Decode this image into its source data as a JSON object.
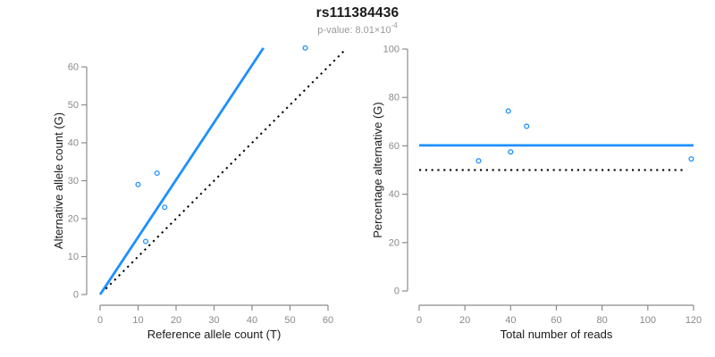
{
  "header": {
    "title": "rs111384436",
    "pvalue_text": "p-value: 8.01×10",
    "pvalue_exponent": "-4"
  },
  "colors": {
    "accent_blue": "#1e90ff",
    "dotted_black": "#000000",
    "axis_gray": "#8c8c8c",
    "tick_label_gray": "#8a8a8a",
    "axis_title_black": "#1a1a1a"
  },
  "chart_data": [
    {
      "type": "scatter",
      "panel": "left",
      "xlabel": "Reference allele count (T)",
      "ylabel": "Alternative allele count (G)",
      "xlim": [
        0,
        60
      ],
      "ylim": [
        0,
        60
      ],
      "xticks": [
        0,
        10,
        20,
        30,
        40,
        50,
        60
      ],
      "yticks": [
        0,
        10,
        20,
        30,
        40,
        50,
        60
      ],
      "grid": false,
      "points": [
        [
          10,
          29
        ],
        [
          12,
          14
        ],
        [
          15,
          32
        ],
        [
          17,
          23
        ],
        [
          54,
          65
        ]
      ],
      "lines": [
        {
          "name": "fit-line",
          "style": "solid",
          "color": "#1e90ff",
          "from": [
            0,
            0
          ],
          "to": [
            43,
            65
          ]
        },
        {
          "name": "identity-line",
          "style": "dotted",
          "color": "#000000",
          "from": [
            1.5,
            1.5
          ],
          "to": [
            64.5,
            64.5
          ]
        }
      ]
    },
    {
      "type": "scatter",
      "panel": "right",
      "xlabel": "Total number of reads",
      "ylabel": "Percentage alternative (G)",
      "xlim": [
        0,
        120
      ],
      "ylim": [
        0,
        100
      ],
      "xticks": [
        0,
        20,
        40,
        60,
        80,
        100,
        120
      ],
      "yticks": [
        0,
        20,
        40,
        60,
        80,
        100
      ],
      "grid": false,
      "points": [
        [
          26,
          53.8
        ],
        [
          39,
          74.4
        ],
        [
          40,
          57.5
        ],
        [
          47,
          68.1
        ],
        [
          119,
          54.6
        ]
      ],
      "lines": [
        {
          "name": "mean-percentage-line",
          "style": "solid",
          "color": "#1e90ff",
          "from": [
            0,
            60.2
          ],
          "to": [
            120,
            60.2
          ]
        },
        {
          "name": "expected-50pct-line",
          "style": "dotted",
          "color": "#000000",
          "from": [
            0,
            50
          ],
          "to": [
            117,
            50
          ]
        }
      ]
    }
  ]
}
